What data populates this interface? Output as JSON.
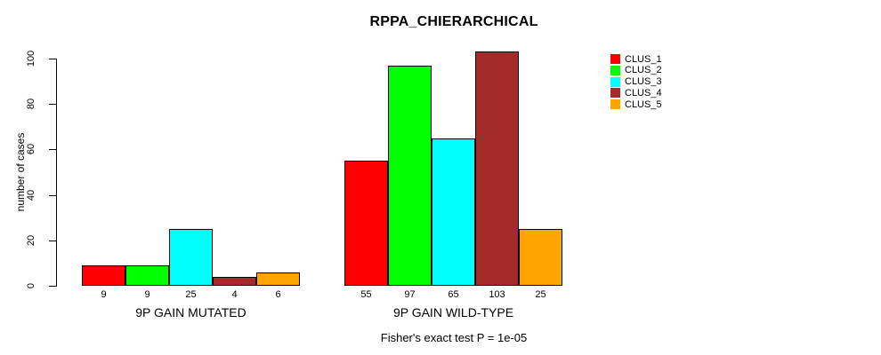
{
  "title": "RPPA_CHIERARCHICAL",
  "ylabel": "number of cases",
  "footnote": "Fisher's exact test P = 1e-05",
  "chart_data": {
    "type": "bar",
    "title": "RPPA_CHIERARCHICAL",
    "ylabel": "number of cases",
    "xlabel": "",
    "ylim": [
      0,
      100
    ],
    "yticks": [
      0,
      20,
      40,
      60,
      80,
      100
    ],
    "grid": false,
    "legend_position": "right-outside-top",
    "series": [
      {
        "name": "CLUS_1",
        "color": "#FF0000",
        "values": [
          9,
          55
        ]
      },
      {
        "name": "CLUS_2",
        "color": "#00FF00",
        "values": [
          9,
          97
        ]
      },
      {
        "name": "CLUS_3",
        "color": "#00FFFF",
        "values": [
          25,
          65
        ]
      },
      {
        "name": "CLUS_4",
        "color": "#A52A2A",
        "values": [
          4,
          103
        ]
      },
      {
        "name": "CLUS_5",
        "color": "#FFA500",
        "values": [
          6,
          25
        ]
      }
    ],
    "groups": [
      {
        "label": "9P GAIN MUTATED",
        "values": [
          9,
          9,
          25,
          4,
          6
        ]
      },
      {
        "label": "9P GAIN WILD-TYPE",
        "values": [
          55,
          97,
          65,
          103,
          25
        ]
      }
    ],
    "bar_value_labels_shown": true,
    "annotation": "Fisher's exact test P = 1e-05"
  }
}
